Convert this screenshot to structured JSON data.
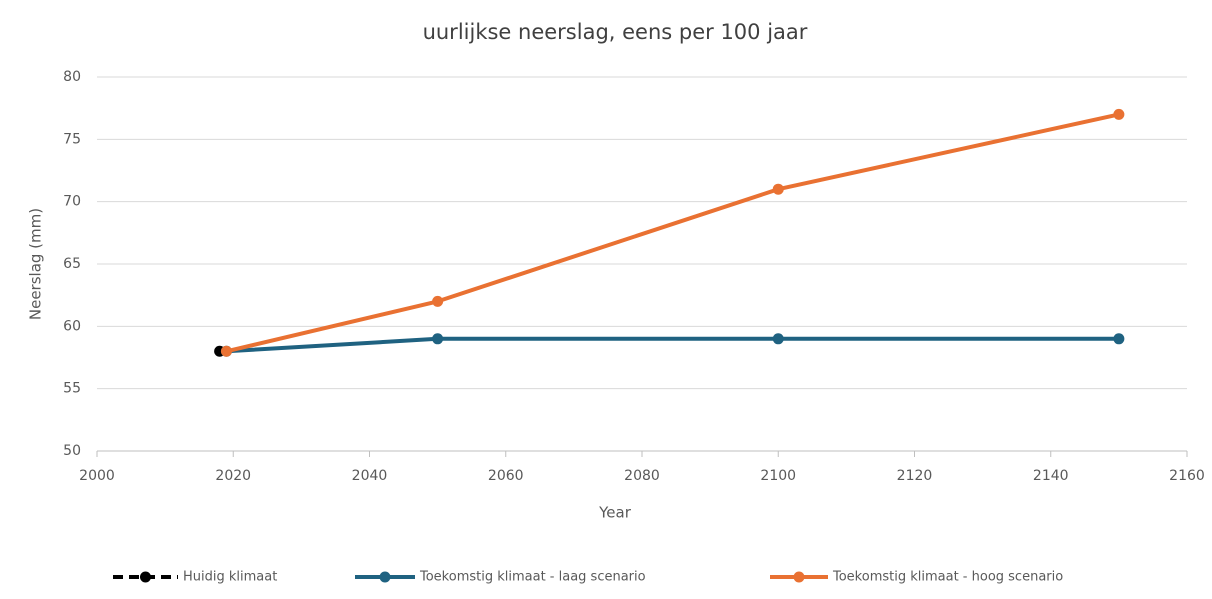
{
  "chart_data": {
    "type": "line",
    "title": "uurlijkse neerslag, eens per 100 jaar",
    "xlabel": "Year",
    "ylabel": "Neerslag (mm)",
    "xlim": [
      2000,
      2160
    ],
    "xticks": [
      2000,
      2020,
      2040,
      2060,
      2080,
      2100,
      2120,
      2140,
      2160
    ],
    "ylim": [
      50,
      80
    ],
    "yticks": [
      50,
      55,
      60,
      65,
      70,
      75,
      80
    ],
    "grid": true,
    "legend": "bottom",
    "series": [
      {
        "name": "Huidig klimaat",
        "color": "#000000",
        "dashed": true,
        "x": [
          2018
        ],
        "values": [
          58
        ]
      },
      {
        "name": "Toekomstig klimaat - laag scenario",
        "color": "#1f6281",
        "dashed": false,
        "x": [
          2019,
          2050,
          2100,
          2150
        ],
        "values": [
          58,
          59,
          59,
          59
        ]
      },
      {
        "name": "Toekomstig klimaat - hoog scenario",
        "color": "#e97132",
        "dashed": false,
        "x": [
          2019,
          2050,
          2100,
          2150
        ],
        "values": [
          58,
          62,
          71,
          77
        ]
      }
    ]
  }
}
